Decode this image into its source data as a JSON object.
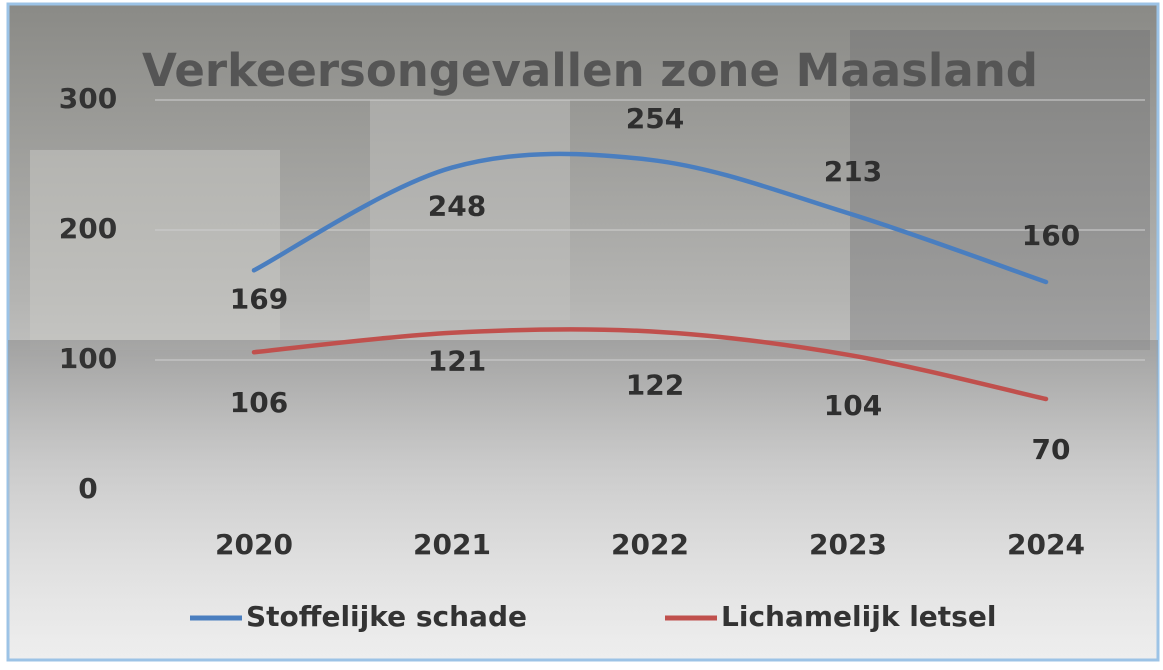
{
  "chart_data": {
    "type": "line",
    "title": "Verkeersongevallen zone Maasland",
    "categories": [
      "2020",
      "2021",
      "2022",
      "2023",
      "2024"
    ],
    "series": [
      {
        "name": "Stoffelijke schade",
        "color": "#4a7ebf",
        "values": [
          169,
          248,
          254,
          213,
          160
        ]
      },
      {
        "name": "Lichamelijk letsel",
        "color": "#c0504d",
        "values": [
          106,
          121,
          122,
          104,
          70
        ]
      }
    ],
    "ylim": [
      0,
      300
    ],
    "yticks": [
      0,
      100,
      200,
      300
    ],
    "grid": true,
    "smooth": true,
    "legend": "bottom"
  }
}
